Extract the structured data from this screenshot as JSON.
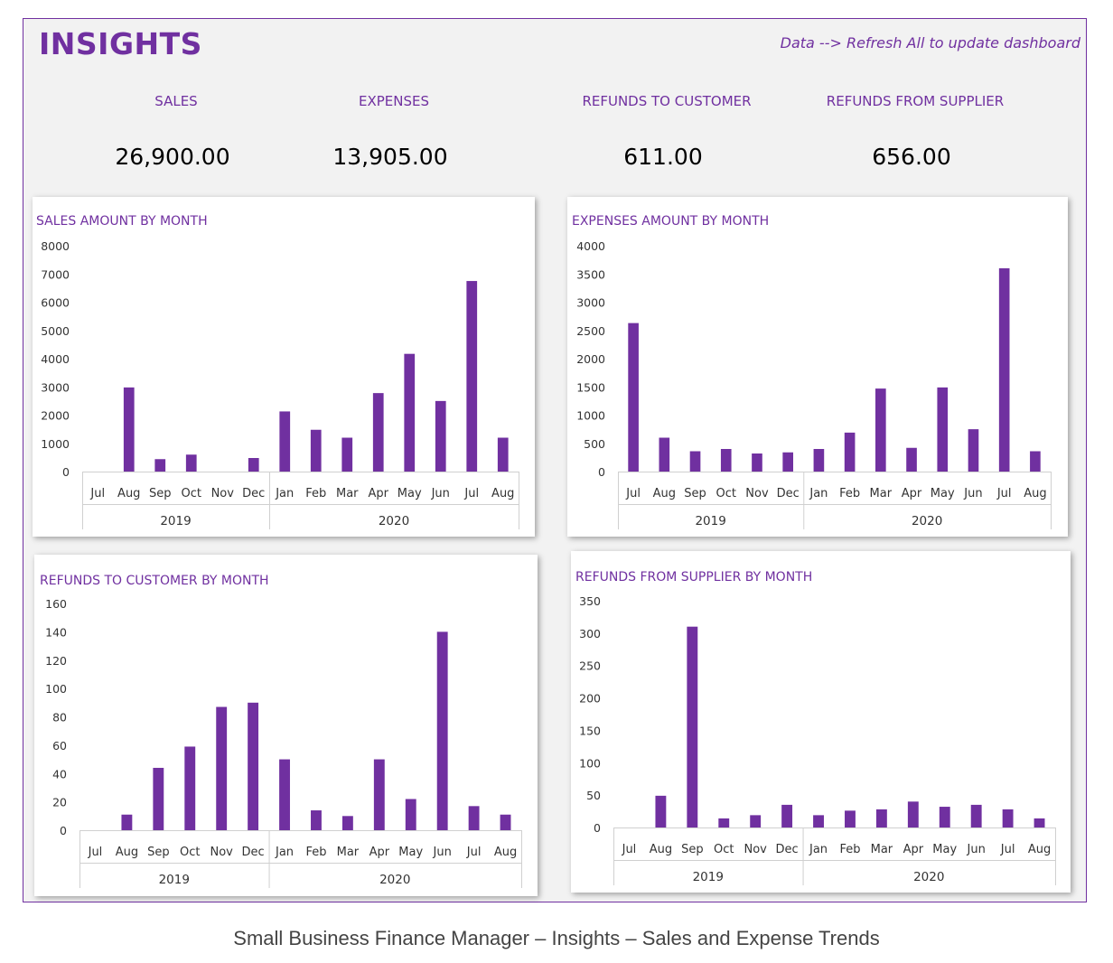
{
  "header": {
    "title": "INSIGHTS",
    "hint": "Data --> Refresh All to update dashboard"
  },
  "kpis": [
    {
      "label": "SALES",
      "value": "26,900.00"
    },
    {
      "label": "EXPENSES",
      "value": "13,905.00"
    },
    {
      "label": "REFUNDS TO CUSTOMER",
      "value": "611.00"
    },
    {
      "label": "REFUNDS FROM SUPPLIER",
      "value": "656.00"
    }
  ],
  "colors": {
    "accent": "#7030a0",
    "bar": "#7030a0"
  },
  "chart_data": [
    {
      "type": "bar",
      "title": "SALES AMOUNT BY MONTH",
      "categories": [
        "Jul",
        "Aug",
        "Sep",
        "Oct",
        "Nov",
        "Dec",
        "Jan",
        "Feb",
        "Mar",
        "Apr",
        "May",
        "Jun",
        "Jul",
        "Aug"
      ],
      "groups": [
        {
          "label": "2019",
          "count": 6
        },
        {
          "label": "2020",
          "count": 8
        }
      ],
      "values": [
        0,
        2980,
        440,
        600,
        0,
        480,
        2130,
        1480,
        1200,
        2780,
        4170,
        2500,
        6750,
        1200
      ],
      "ylim": [
        0,
        8000
      ],
      "yticks": [
        0,
        1000,
        2000,
        3000,
        4000,
        5000,
        6000,
        7000,
        8000
      ]
    },
    {
      "type": "bar",
      "title": "EXPENSES AMOUNT BY MONTH",
      "categories": [
        "Jul",
        "Aug",
        "Sep",
        "Oct",
        "Nov",
        "Dec",
        "Jan",
        "Feb",
        "Mar",
        "Apr",
        "May",
        "Jun",
        "Jul",
        "Aug"
      ],
      "groups": [
        {
          "label": "2019",
          "count": 6
        },
        {
          "label": "2020",
          "count": 8
        }
      ],
      "values": [
        2630,
        600,
        360,
        400,
        320,
        340,
        400,
        690,
        1470,
        420,
        1490,
        750,
        3600,
        360
      ],
      "ylim": [
        0,
        4000
      ],
      "yticks": [
        0,
        500,
        1000,
        1500,
        2000,
        2500,
        3000,
        3500,
        4000
      ]
    },
    {
      "type": "bar",
      "title": "REFUNDS TO CUSTOMER BY MONTH",
      "categories": [
        "Jul",
        "Aug",
        "Sep",
        "Oct",
        "Nov",
        "Dec",
        "Jan",
        "Feb",
        "Mar",
        "Apr",
        "May",
        "Jun",
        "Jul",
        "Aug"
      ],
      "groups": [
        {
          "label": "2019",
          "count": 6
        },
        {
          "label": "2020",
          "count": 8
        }
      ],
      "values": [
        0,
        11,
        44,
        59,
        87,
        90,
        50,
        14,
        10,
        50,
        22,
        140,
        17,
        11
      ],
      "ylim": [
        0,
        160
      ],
      "yticks": [
        0,
        20,
        40,
        60,
        80,
        100,
        120,
        140,
        160
      ]
    },
    {
      "type": "bar",
      "title": "REFUNDS FROM SUPPLIER BY MONTH",
      "categories": [
        "Jul",
        "Aug",
        "Sep",
        "Oct",
        "Nov",
        "Dec",
        "Jan",
        "Feb",
        "Mar",
        "Apr",
        "May",
        "Jun",
        "Jul",
        "Aug"
      ],
      "groups": [
        {
          "label": "2019",
          "count": 6
        },
        {
          "label": "2020",
          "count": 8
        }
      ],
      "values": [
        0,
        49,
        310,
        14,
        19,
        35,
        19,
        26,
        28,
        40,
        32,
        35,
        28,
        14
      ],
      "ylim": [
        0,
        350
      ],
      "yticks": [
        0,
        50,
        100,
        150,
        200,
        250,
        300,
        350
      ]
    }
  ],
  "caption": "Small Business Finance Manager – Insights – Sales and Expense Trends"
}
